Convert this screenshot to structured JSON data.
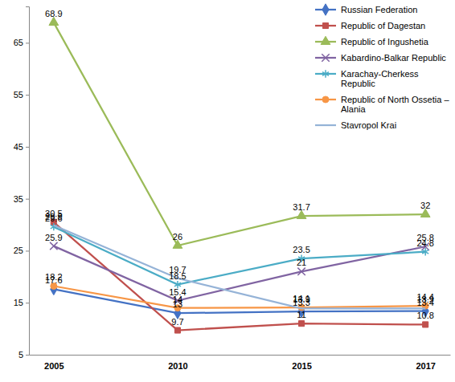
{
  "chart_data": {
    "type": "line",
    "categories": [
      "2005",
      "2010",
      "2015",
      "2017"
    ],
    "series": [
      {
        "name": "Russian Federation",
        "color": "#4472c4",
        "marker": "diamond",
        "values": [
          17.6,
          13,
          13.3,
          13.4
        ]
      },
      {
        "name": "Republic of Dagestan",
        "color": "#c0504d",
        "marker": "square",
        "values": [
          30.5,
          9.7,
          11,
          10.8
        ]
      },
      {
        "name": "Republic of Ingushetia",
        "color": "#9bbb59",
        "marker": "triangle",
        "values": [
          68.9,
          26,
          31.7,
          32
        ]
      },
      {
        "name": "Kabardino-Balkar Republic",
        "color": "#8064a2",
        "marker": "x",
        "values": [
          25.9,
          15.4,
          21,
          25.8
        ]
      },
      {
        "name": "Karachay-Cherkess Republic",
        "color": "#4bacc6",
        "marker": "asterisk",
        "values": [
          29.6,
          18.5,
          23.5,
          24.8
        ]
      },
      {
        "name": "Republic of North Ossetia – Alania",
        "color": "#f79646",
        "marker": "circle",
        "values": [
          18.2,
          14,
          14.1,
          14.4
        ]
      },
      {
        "name": "Stavropol Krai",
        "color": "#95b3d7",
        "marker": "none",
        "values": [
          29.9,
          19.7,
          13.9,
          13.9
        ]
      }
    ],
    "ylim": [
      5,
      72
    ],
    "yticks": [
      5,
      15,
      25,
      35,
      45,
      55,
      65
    ],
    "grid": false,
    "legend": "top-right",
    "data_labels": true
  }
}
